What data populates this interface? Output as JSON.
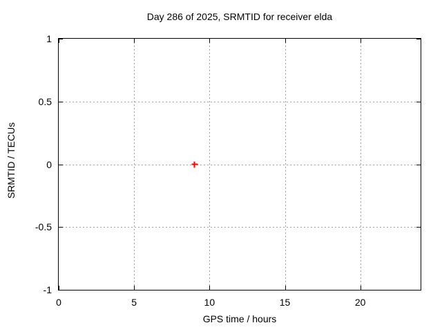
{
  "chart_data": {
    "type": "scatter",
    "title": "Day 286 of 2025, SRMTID for receiver elda",
    "xlabel": "GPS time / hours",
    "ylabel": "SRMTID / TECUs",
    "xlim": [
      0,
      24
    ],
    "ylim": [
      -1,
      1
    ],
    "x_ticks": [
      0,
      5,
      10,
      15,
      20
    ],
    "x_tick_labels": [
      "0",
      "5",
      "10",
      "15",
      "20"
    ],
    "y_ticks": [
      1,
      0.5,
      0,
      -0.5,
      -1
    ],
    "y_tick_labels": [
      "1",
      "0.5",
      "0",
      "-0.5",
      "-1"
    ],
    "grid": true,
    "ticks_mirrored": true,
    "legend_position": "none",
    "colors": {
      "background": "#ffffff",
      "border": "#000000",
      "grid": "#9e9e9e",
      "text": "#000000"
    },
    "series": [
      {
        "name": "SRMTID",
        "marker": "plus",
        "color": "#ff0000",
        "points": [
          {
            "x": 9.0,
            "y": 0.0
          }
        ]
      }
    ]
  }
}
